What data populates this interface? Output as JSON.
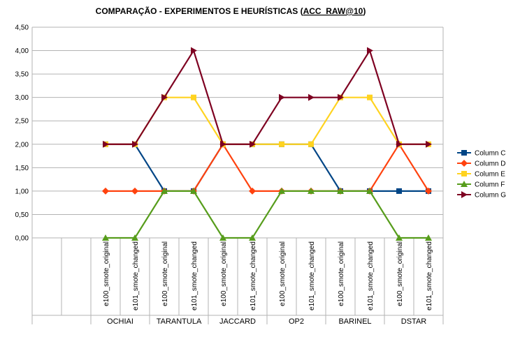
{
  "chart_data": {
    "type": "line",
    "title_prefix": "COMPARAÇÃO - EXPERIMENTOS E HEURÍSTICAS (",
    "title_underlined": "ACC_RAW@10",
    "title_suffix": ")",
    "xlabel": "",
    "ylabel": "",
    "ylim": [
      0,
      4.5
    ],
    "yticks": [
      "0,00",
      "0,50",
      "1,00",
      "1,50",
      "2,00",
      "2,50",
      "3,00",
      "3,50",
      "4,00",
      "4,50"
    ],
    "grid": true,
    "legend_position": "right",
    "categories": [
      "",
      "",
      "e100_smote_original",
      "e101_smote_changed",
      "e100_smote_original",
      "e101_smote_changed",
      "e100_smote_original",
      "e101_smote_changed",
      "e100_smote_original",
      "e101_smote_changed",
      "e100_smote_original",
      "e101_smote_changed",
      "e100_smote_original",
      "e101_smote_changed"
    ],
    "groups": [
      "",
      "OCHIAI",
      "TARANTULA",
      "JACCARD",
      "OP2",
      "BARINEL",
      "DSTAR"
    ],
    "series": [
      {
        "name": "Column C",
        "color": "#004586",
        "marker": "square",
        "values": [
          null,
          null,
          2,
          2,
          1,
          1,
          2,
          2,
          2,
          2,
          1,
          1,
          1,
          1
        ]
      },
      {
        "name": "Column D",
        "color": "#ff420e",
        "marker": "diamond",
        "values": [
          null,
          null,
          1,
          1,
          1,
          1,
          2,
          1,
          1,
          1,
          1,
          1,
          2,
          1
        ]
      },
      {
        "name": "Column E",
        "color": "#ffd320",
        "marker": "square",
        "values": [
          null,
          null,
          2,
          2,
          3,
          3,
          2,
          2,
          2,
          2,
          3,
          3,
          2,
          2
        ]
      },
      {
        "name": "Column F",
        "color": "#579d1c",
        "marker": "triangle",
        "values": [
          null,
          null,
          0,
          0,
          1,
          1,
          0,
          0,
          1,
          1,
          1,
          1,
          0,
          0
        ]
      },
      {
        "name": "Column G",
        "color": "#7e0021",
        "marker": "arrow",
        "values": [
          null,
          null,
          2,
          2,
          3,
          4,
          2,
          2,
          3,
          3,
          3,
          4,
          2,
          2
        ]
      }
    ]
  }
}
